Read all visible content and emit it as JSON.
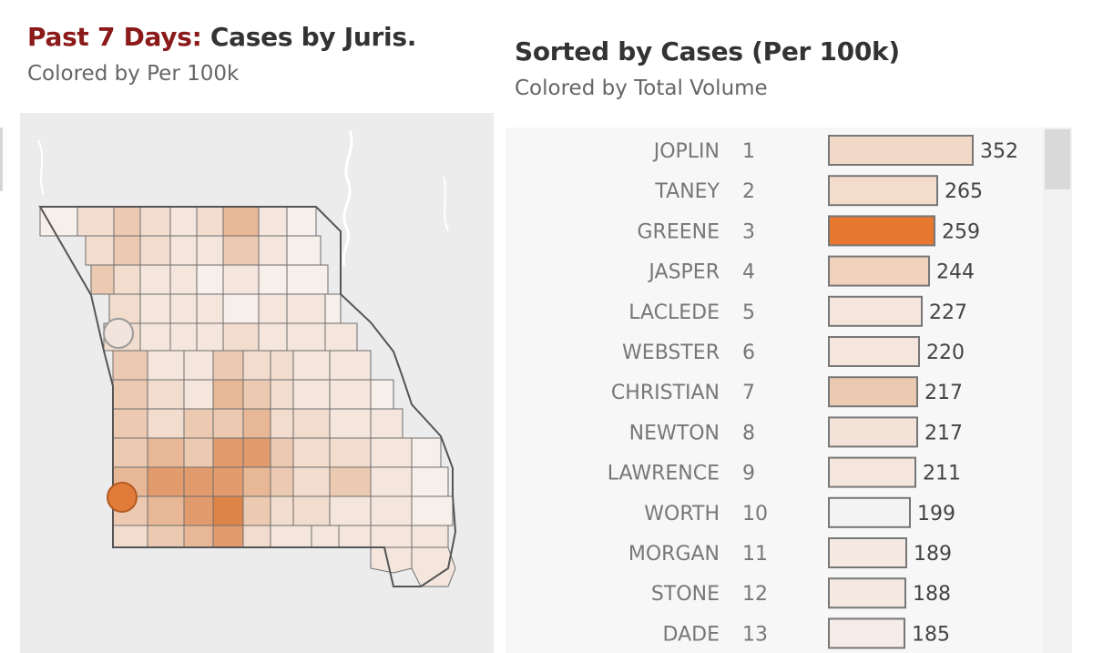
{
  "left_panel": {
    "title_accent": "Past 7 Days:",
    "title_rest": " Cases by Juris.",
    "subtitle": "Colored by Per 100k"
  },
  "right_panel": {
    "title": "Sorted by Cases (Per 100k)",
    "subtitle": "Colored by Total Volume"
  },
  "colors": {
    "title_accent": "#8b1a1a",
    "map_background": "#ececec",
    "county_border": "#6e6e6e",
    "bar_border": "#777777",
    "highlight_orange": "#e07b39"
  },
  "chart_data": {
    "type": "bar",
    "orientation": "horizontal",
    "categories": [
      "JOPLIN",
      "TANEY",
      "GREENE",
      "JASPER",
      "LACLEDE",
      "WEBSTER",
      "CHRISTIAN",
      "NEWTON",
      "LAWRENCE",
      "WORTH",
      "MORGAN",
      "STONE",
      "DADE"
    ],
    "ranks": [
      "1",
      "2",
      "3",
      "4",
      "5",
      "6",
      "7",
      "8",
      "9",
      "10",
      "11",
      "12",
      "13"
    ],
    "values": [
      352,
      265,
      259,
      244,
      227,
      220,
      217,
      217,
      211,
      199,
      189,
      188,
      185
    ],
    "bar_colors": [
      "#f2d8c6",
      "#f3dccc",
      "#e8782f",
      "#f0d2bd",
      "#f4e6dd",
      "#f4e6dd",
      "#eccab1",
      "#f3e2d7",
      "#f4e6dd",
      "#f3f3f3",
      "#f5e9e1",
      "#f5e9e1",
      "#f5ece7"
    ],
    "xlim": [
      0,
      352
    ],
    "grid": false,
    "legend": "none"
  },
  "map": {
    "circle_markers": [
      {
        "name": "kansas-city-marker",
        "fill": "#f1e4dc"
      },
      {
        "name": "joplin-marker",
        "fill": "#e07b39"
      }
    ]
  }
}
